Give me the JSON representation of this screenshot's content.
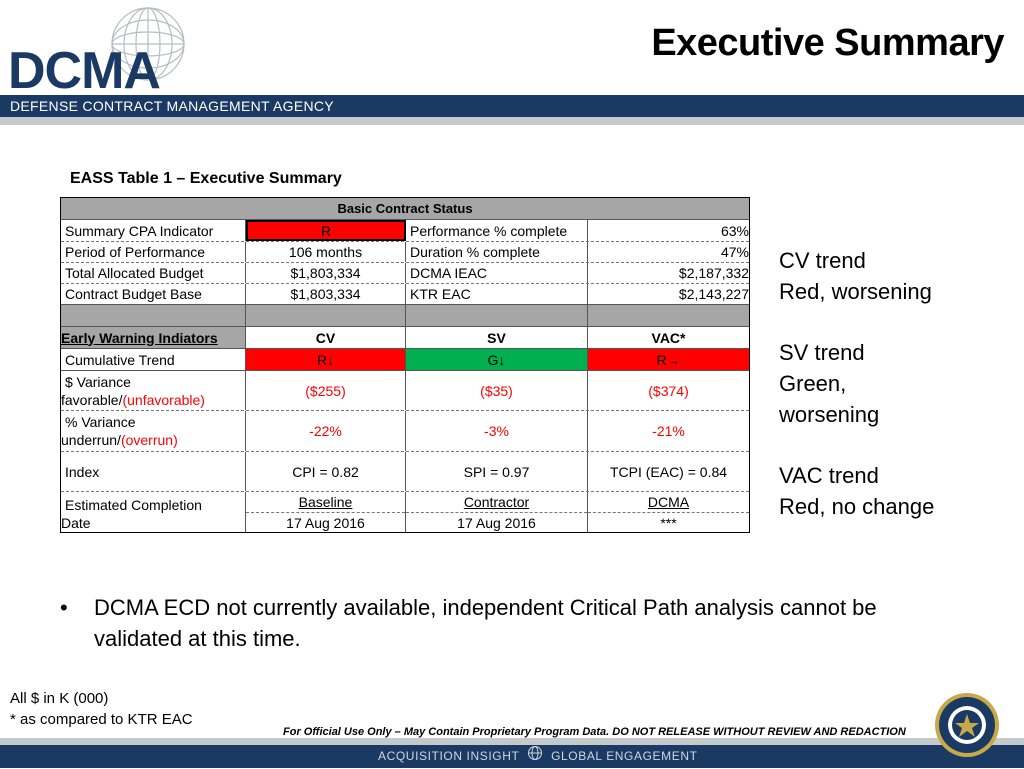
{
  "header": {
    "logo_text": "DCMA",
    "title": "Executive Summary",
    "agency_name": "DEFENSE CONTRACT MANAGEMENT AGENCY"
  },
  "table": {
    "caption": "EASS Table 1 – Executive Summary",
    "basic_header": "Basic Contract Status",
    "basic_rows": [
      {
        "label": "Summary CPA Indicator",
        "value": "R",
        "metric": "Performance % complete",
        "metric_value": "63%"
      },
      {
        "label": "Period of Performance",
        "value": "106 months",
        "metric": "Duration % complete",
        "metric_value": "47%"
      },
      {
        "label": "Total Allocated Budget",
        "value": "$1,803,334",
        "metric": "DCMA IEAC",
        "metric_value": "$2,187,332"
      },
      {
        "label": "Contract Budget Base",
        "value": "$1,803,334",
        "metric": "KTR EAC",
        "metric_value": "$2,143,227"
      }
    ],
    "ew_header": {
      "label": "Early Warning Indiators",
      "cv": "CV",
      "sv": "SV",
      "vac": "VAC*"
    },
    "trend": {
      "label": "Cumulative Trend",
      "cv": "R↓",
      "sv": "G↓",
      "vac": "R→"
    },
    "dollar_variance": {
      "label_line1": "$ Variance",
      "label_line2a": "favorable/",
      "label_line2b": "(unfavorable)",
      "cv": "($255)",
      "sv": "($35)",
      "vac": "($374)"
    },
    "pct_variance": {
      "label_line1": "% Variance",
      "label_line2a": "underrun/",
      "label_line2b": "(overrun)",
      "cv": "-22%",
      "sv": "-3%",
      "vac": "-21%"
    },
    "index": {
      "label": "Index",
      "cv": "CPI = 0.82",
      "sv": "SPI = 0.97",
      "vac": "TCPI (EAC) = 0.84"
    },
    "completion": {
      "label_line1": "Estimated Completion",
      "label_line2": "Date",
      "baseline_label": "Baseline",
      "contractor_label": "Contractor",
      "dcma_label": "DCMA",
      "baseline_value": "17 Aug 2016",
      "contractor_value": "17 Aug 2016",
      "dcma_value": "***"
    }
  },
  "notes": {
    "cv": {
      "line1": "CV trend",
      "line2": "Red, worsening"
    },
    "sv": {
      "line1": "SV trend",
      "line2": "Green,",
      "line3": "worsening"
    },
    "vac": {
      "line1": "VAC trend",
      "line2": "Red, no change"
    }
  },
  "bullet": {
    "marker": "•",
    "text": "DCMA ECD not currently available, independent Critical Path analysis cannot be validated at this time."
  },
  "footnotes": {
    "units": "All $ in K (000)",
    "asterisk": "* as compared to KTR EAC"
  },
  "fouo": "For Official Use Only – May Contain Proprietary Program Data. DO NOT RELEASE WITHOUT REVIEW AND REDACTION",
  "bottom_bar": {
    "left": "ACQUISITION INSIGHT",
    "right": "GLOBAL ENGAGEMENT"
  },
  "colors": {
    "navy": "#1b3a63",
    "red": "#ff0000",
    "green": "#00b050",
    "gray": "#a6a6a6"
  }
}
